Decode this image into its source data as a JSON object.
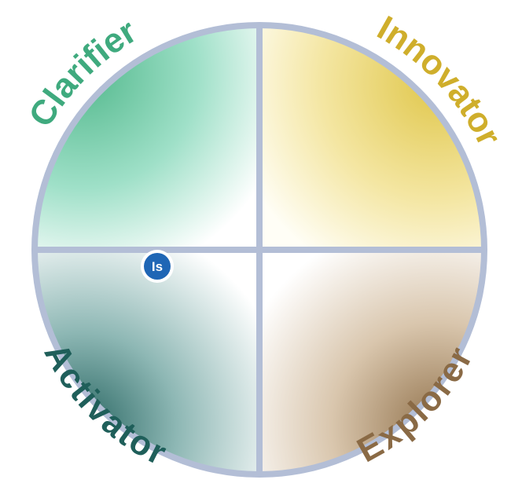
{
  "diagram": {
    "quadrants": [
      {
        "id": "clarifier",
        "label": "Clarifier",
        "position": "top-left",
        "color": "#3faa7e",
        "light": "#b9ecdb"
      },
      {
        "id": "innovator",
        "label": "Innovator",
        "position": "top-right",
        "color": "#cfae2b",
        "light": "#f7eaa8"
      },
      {
        "id": "activator",
        "label": "Activator",
        "position": "bottom-left",
        "color": "#1f5f5a",
        "light": "#c4dcdc"
      },
      {
        "id": "explorer",
        "label": "Explorer",
        "position": "bottom-right",
        "color": "#8a6a45",
        "light": "#efe4d6"
      }
    ],
    "ring_color": "#b3bed6",
    "marker": {
      "label": "Is",
      "color": "#1f66b5",
      "quadrant": "activator"
    }
  }
}
